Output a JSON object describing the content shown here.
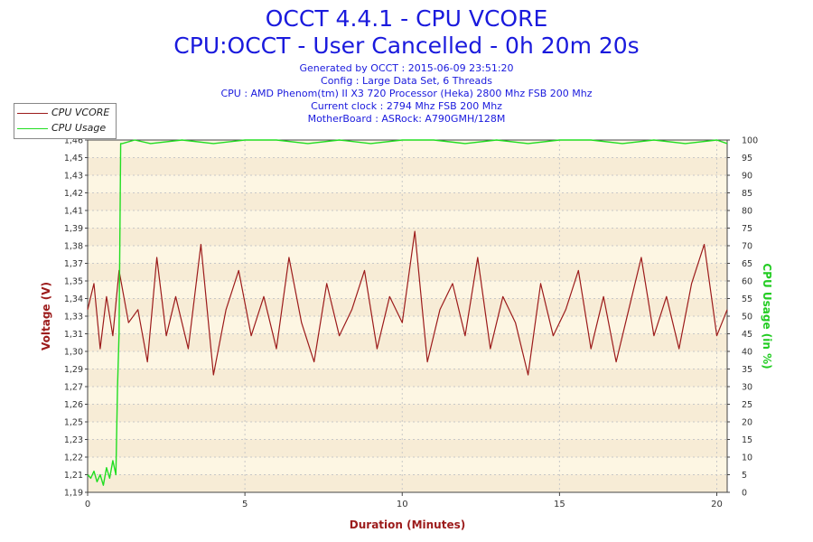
{
  "header": {
    "title": "OCCT 4.4.1 - CPU VCORE",
    "subtitle": "CPU:OCCT - User Cancelled - 0h 20m 20s",
    "info_lines": [
      "Generated by OCCT : 2015-06-09 23:51:20",
      "Config : Large Data Set, 6 Threads",
      "CPU : AMD Phenom(tm) II X3 720 Processor (Heka) 2800 Mhz FSB 200 Mhz",
      "Current clock : 2794 Mhz FSB 200 Mhz",
      "MotherBoard : ASRock: A790GMH/128M"
    ]
  },
  "legend": {
    "items": [
      {
        "label": "CPU VCORE",
        "color": "#9c1b1b"
      },
      {
        "label": "CPU Usage",
        "color": "#22dd22"
      }
    ]
  },
  "chart_data": {
    "type": "line",
    "title": "OCCT 4.4.1 - CPU VCORE",
    "subtitle": "CPU:OCCT - User Cancelled - 0h 20m 20s",
    "xlabel": "Duration (Minutes)",
    "ylabel": "Voltage (V)",
    "y2label": "CPU Usage (in %)",
    "xlim": [
      0,
      20.33
    ],
    "ylim": [
      1.19,
      1.46
    ],
    "y2lim": [
      0,
      100
    ],
    "xticks": [
      "0",
      "5",
      "10",
      "15",
      "20"
    ],
    "yticks": [
      "1,19",
      "1,21",
      "1,22",
      "1,23",
      "1,25",
      "1,26",
      "1,27",
      "1,29",
      "1,30",
      "1,31",
      "1,33",
      "1,34",
      "1,35",
      "1,37",
      "1,38",
      "1,39",
      "1,41",
      "1,42",
      "1,43",
      "1,45",
      "1,46"
    ],
    "y2ticks": [
      "0",
      "5",
      "10",
      "15",
      "20",
      "25",
      "30",
      "35",
      "40",
      "45",
      "50",
      "55",
      "60",
      "65",
      "70",
      "75",
      "80",
      "85",
      "90",
      "95",
      "100"
    ],
    "grid": true,
    "legend_position": "top-left",
    "series": [
      {
        "name": "CPU VCORE",
        "axis": "left",
        "color": "#9c1b1b",
        "x": [
          0,
          0.2,
          0.4,
          0.6,
          0.8,
          1.0,
          1.3,
          1.6,
          1.9,
          2.2,
          2.5,
          2.8,
          3.2,
          3.6,
          4.0,
          4.4,
          4.8,
          5.2,
          5.6,
          6.0,
          6.4,
          6.8,
          7.2,
          7.6,
          8.0,
          8.4,
          8.8,
          9.2,
          9.6,
          10.0,
          10.4,
          10.8,
          11.2,
          11.6,
          12.0,
          12.4,
          12.8,
          13.2,
          13.6,
          14.0,
          14.4,
          14.8,
          15.2,
          15.6,
          16.0,
          16.4,
          16.8,
          17.2,
          17.6,
          18.0,
          18.4,
          18.8,
          19.2,
          19.6,
          20.0,
          20.33
        ],
        "values": [
          1.33,
          1.35,
          1.3,
          1.34,
          1.31,
          1.36,
          1.32,
          1.33,
          1.29,
          1.37,
          1.31,
          1.34,
          1.3,
          1.38,
          1.28,
          1.33,
          1.36,
          1.31,
          1.34,
          1.3,
          1.37,
          1.32,
          1.29,
          1.35,
          1.31,
          1.33,
          1.36,
          1.3,
          1.34,
          1.32,
          1.39,
          1.29,
          1.33,
          1.35,
          1.31,
          1.37,
          1.3,
          1.34,
          1.32,
          1.28,
          1.35,
          1.31,
          1.33,
          1.36,
          1.3,
          1.34,
          1.29,
          1.33,
          1.37,
          1.31,
          1.34,
          1.3,
          1.35,
          1.38,
          1.31,
          1.33
        ]
      },
      {
        "name": "CPU Usage",
        "axis": "right",
        "color": "#22dd22",
        "x": [
          0,
          0.1,
          0.2,
          0.3,
          0.4,
          0.5,
          0.6,
          0.7,
          0.8,
          0.9,
          0.95,
          1.0,
          1.05,
          1.1,
          1.5,
          2,
          3,
          4,
          5,
          6,
          7,
          8,
          9,
          10,
          11,
          12,
          13,
          14,
          15,
          16,
          17,
          18,
          19,
          20,
          20.33
        ],
        "values": [
          5,
          4,
          6,
          3,
          5,
          2,
          7,
          4,
          9,
          5,
          30,
          45,
          99,
          99,
          100,
          99,
          100,
          99,
          100,
          100,
          99,
          100,
          99,
          100,
          100,
          99,
          100,
          99,
          100,
          100,
          99,
          100,
          99,
          100,
          99
        ]
      }
    ]
  }
}
